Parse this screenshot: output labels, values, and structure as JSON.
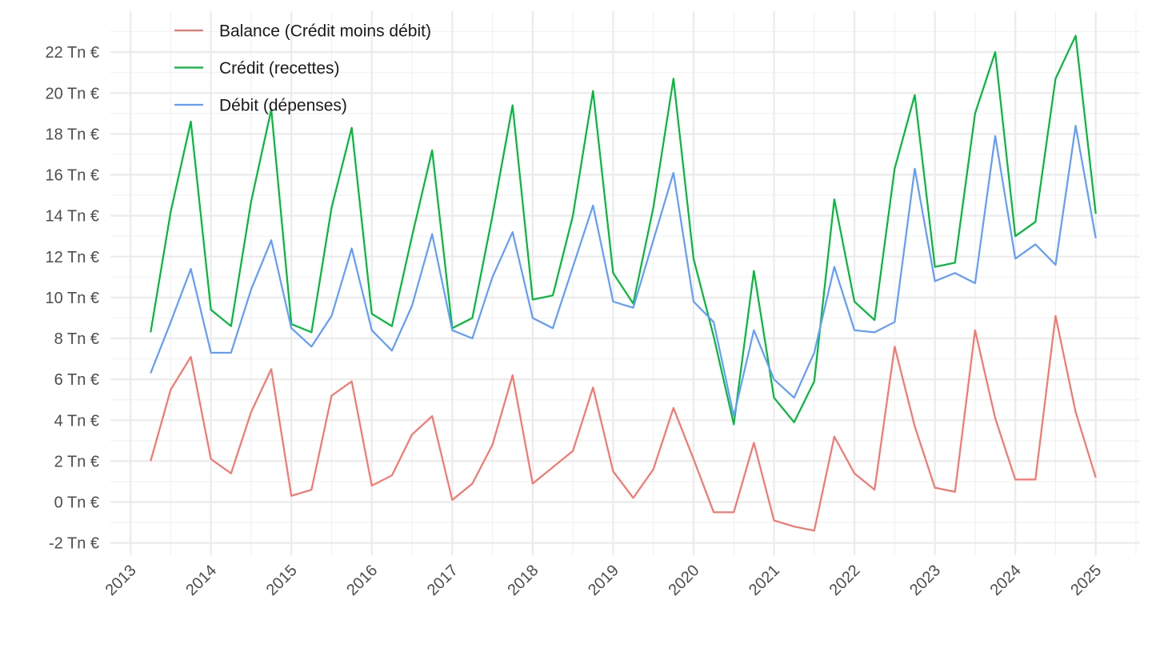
{
  "chart_data": {
    "type": "line",
    "title": "",
    "xlabel": "",
    "ylabel": "",
    "xlim": [
      2012.75,
      2025.55
    ],
    "ylim": [
      -2.6,
      24.0
    ],
    "x_ticks": [
      2013,
      2014,
      2015,
      2016,
      2017,
      2018,
      2019,
      2020,
      2021,
      2022,
      2023,
      2024,
      2025
    ],
    "y_ticks": [
      -2,
      0,
      2,
      4,
      6,
      8,
      10,
      12,
      14,
      16,
      18,
      20,
      22
    ],
    "y_tick_suffix": " Tn €",
    "grid": true,
    "legend_position": "top-left",
    "x": [
      2013.25,
      2013.5,
      2013.75,
      2014.0,
      2014.25,
      2014.5,
      2014.75,
      2015.0,
      2015.25,
      2015.5,
      2015.75,
      2016.0,
      2016.25,
      2016.5,
      2016.75,
      2017.0,
      2017.25,
      2017.5,
      2017.75,
      2018.0,
      2018.25,
      2018.5,
      2018.75,
      2019.0,
      2019.25,
      2019.5,
      2019.75,
      2020.0,
      2020.25,
      2020.5,
      2020.75,
      2021.0,
      2021.25,
      2021.5,
      2021.75,
      2022.0,
      2022.25,
      2022.5,
      2022.75,
      2023.0,
      2023.25,
      2023.5,
      2023.75,
      2024.0,
      2024.25,
      2024.5,
      2024.75,
      2025.0
    ],
    "series": [
      {
        "name": "Balance (Crédit moins débit)",
        "color": "#F8766D",
        "values": [
          2.0,
          5.5,
          7.1,
          2.1,
          1.4,
          4.4,
          6.5,
          0.3,
          0.6,
          5.2,
          5.9,
          0.8,
          1.3,
          3.3,
          4.2,
          0.1,
          0.9,
          2.8,
          6.2,
          0.9,
          1.7,
          2.5,
          5.6,
          1.5,
          0.2,
          1.6,
          4.6,
          2.1,
          -0.5,
          -0.5,
          2.9,
          -0.9,
          -1.2,
          -1.4,
          3.2,
          1.4,
          0.6,
          7.6,
          3.7,
          0.7,
          0.5,
          8.4,
          4.1,
          1.1,
          1.1,
          9.1,
          4.4,
          1.2
        ]
      },
      {
        "name": "Crédit (recettes)",
        "color": "#00BA38",
        "values": [
          8.3,
          14.2,
          18.6,
          9.4,
          8.6,
          14.7,
          19.2,
          8.7,
          8.3,
          14.4,
          18.3,
          9.2,
          8.6,
          13.0,
          17.2,
          8.5,
          9.0,
          14.0,
          19.4,
          9.9,
          10.1,
          14.0,
          20.1,
          11.2,
          9.7,
          14.4,
          20.7,
          11.9,
          8.1,
          3.8,
          11.3,
          5.1,
          3.9,
          5.9,
          14.8,
          9.8,
          8.9,
          16.3,
          19.9,
          11.5,
          11.7,
          19.0,
          22.0,
          13.0,
          13.7,
          20.7,
          22.8,
          14.1
        ]
      },
      {
        "name": "Débit (dépenses)",
        "color": "#619CFF",
        "values": [
          6.3,
          8.8,
          11.4,
          7.3,
          7.3,
          10.4,
          12.8,
          8.5,
          7.6,
          9.1,
          12.4,
          8.4,
          7.4,
          9.6,
          13.1,
          8.4,
          8.0,
          11.0,
          13.2,
          9.0,
          8.5,
          11.5,
          14.5,
          9.8,
          9.5,
          12.8,
          16.1,
          9.8,
          8.8,
          4.2,
          8.4,
          6.0,
          5.1,
          7.3,
          11.5,
          8.4,
          8.3,
          8.8,
          16.3,
          10.8,
          11.2,
          10.7,
          17.9,
          11.9,
          12.6,
          11.6,
          18.4,
          12.9
        ]
      }
    ]
  }
}
